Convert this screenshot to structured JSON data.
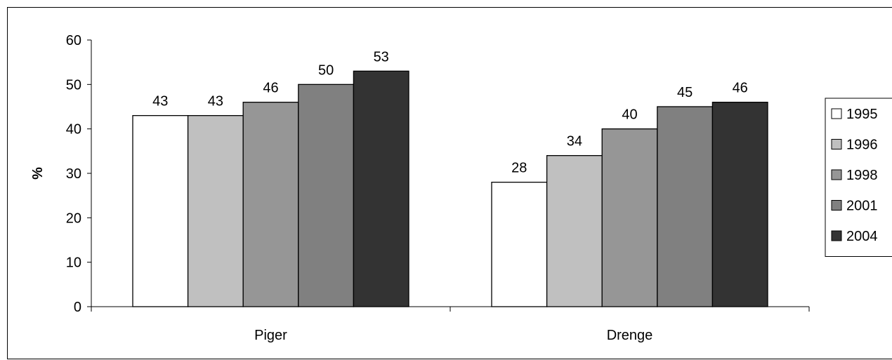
{
  "chart_data": {
    "type": "bar",
    "categories": [
      "Piger",
      "Drenge"
    ],
    "series": [
      {
        "name": "1995",
        "values": [
          43,
          28
        ],
        "color": "#ffffff"
      },
      {
        "name": "1996",
        "values": [
          43,
          34
        ],
        "color": "#c0c0c0"
      },
      {
        "name": "1998",
        "values": [
          46,
          40
        ],
        "color": "#969696"
      },
      {
        "name": "2001",
        "values": [
          50,
          45
        ],
        "color": "#808080"
      },
      {
        "name": "2004",
        "values": [
          53,
          46
        ],
        "color": "#333333"
      }
    ],
    "ylabel": "%",
    "ylim": [
      0,
      60
    ],
    "yticks": [
      0,
      10,
      20,
      30,
      40,
      50,
      60
    ],
    "grid": false,
    "legend_position": "right",
    "data_labels": true
  }
}
